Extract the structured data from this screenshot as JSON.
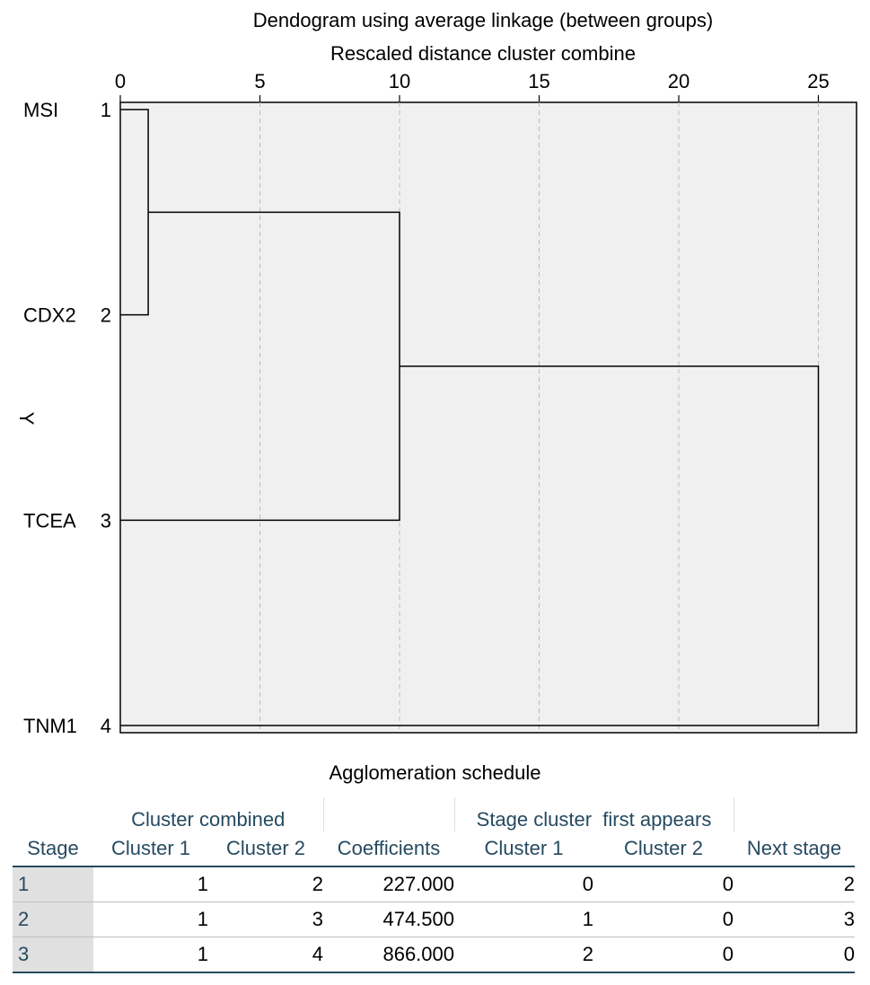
{
  "chart_data": {
    "type": "dendrogram",
    "title": "Dendogram using average linkage (between groups)",
    "xlabel": "Rescaled distance cluster combine",
    "ylabel": "Y",
    "xlim": [
      0,
      26.5
    ],
    "xticks": [
      0,
      5,
      10,
      15,
      20,
      25
    ],
    "grid": true,
    "leaves": [
      {
        "name": "MSI",
        "num": "1"
      },
      {
        "name": "CDX2",
        "num": "2"
      },
      {
        "name": "TCEA",
        "num": "3"
      },
      {
        "name": "TNM1",
        "num": "4"
      }
    ],
    "merges": [
      {
        "a": 1,
        "b": 2,
        "height": 1
      },
      {
        "a": 1,
        "b": 3,
        "height": 10
      },
      {
        "a": 1,
        "b": 4,
        "height": 25
      }
    ]
  },
  "schedule": {
    "title": "Agglomeration schedule",
    "group_headers": {
      "cluster_combined": "Cluster combined",
      "stage_first_a": "Stage cluster",
      "stage_first_b": "first appears"
    },
    "columns": [
      "Stage",
      "Cluster 1",
      "Cluster 2",
      "Coefficients",
      "Cluster 1",
      "Cluster 2",
      "Next stage"
    ],
    "rows": [
      [
        "1",
        "1",
        "2",
        "227.000",
        "0",
        "0",
        "2"
      ],
      [
        "2",
        "1",
        "3",
        "474.500",
        "1",
        "0",
        "3"
      ],
      [
        "3",
        "1",
        "4",
        "866.000",
        "2",
        "0",
        "0"
      ]
    ]
  },
  "colors": {
    "header_text": "#264a60",
    "plot_bg": "#f0f0f0",
    "grid": "#bbbbbb"
  }
}
